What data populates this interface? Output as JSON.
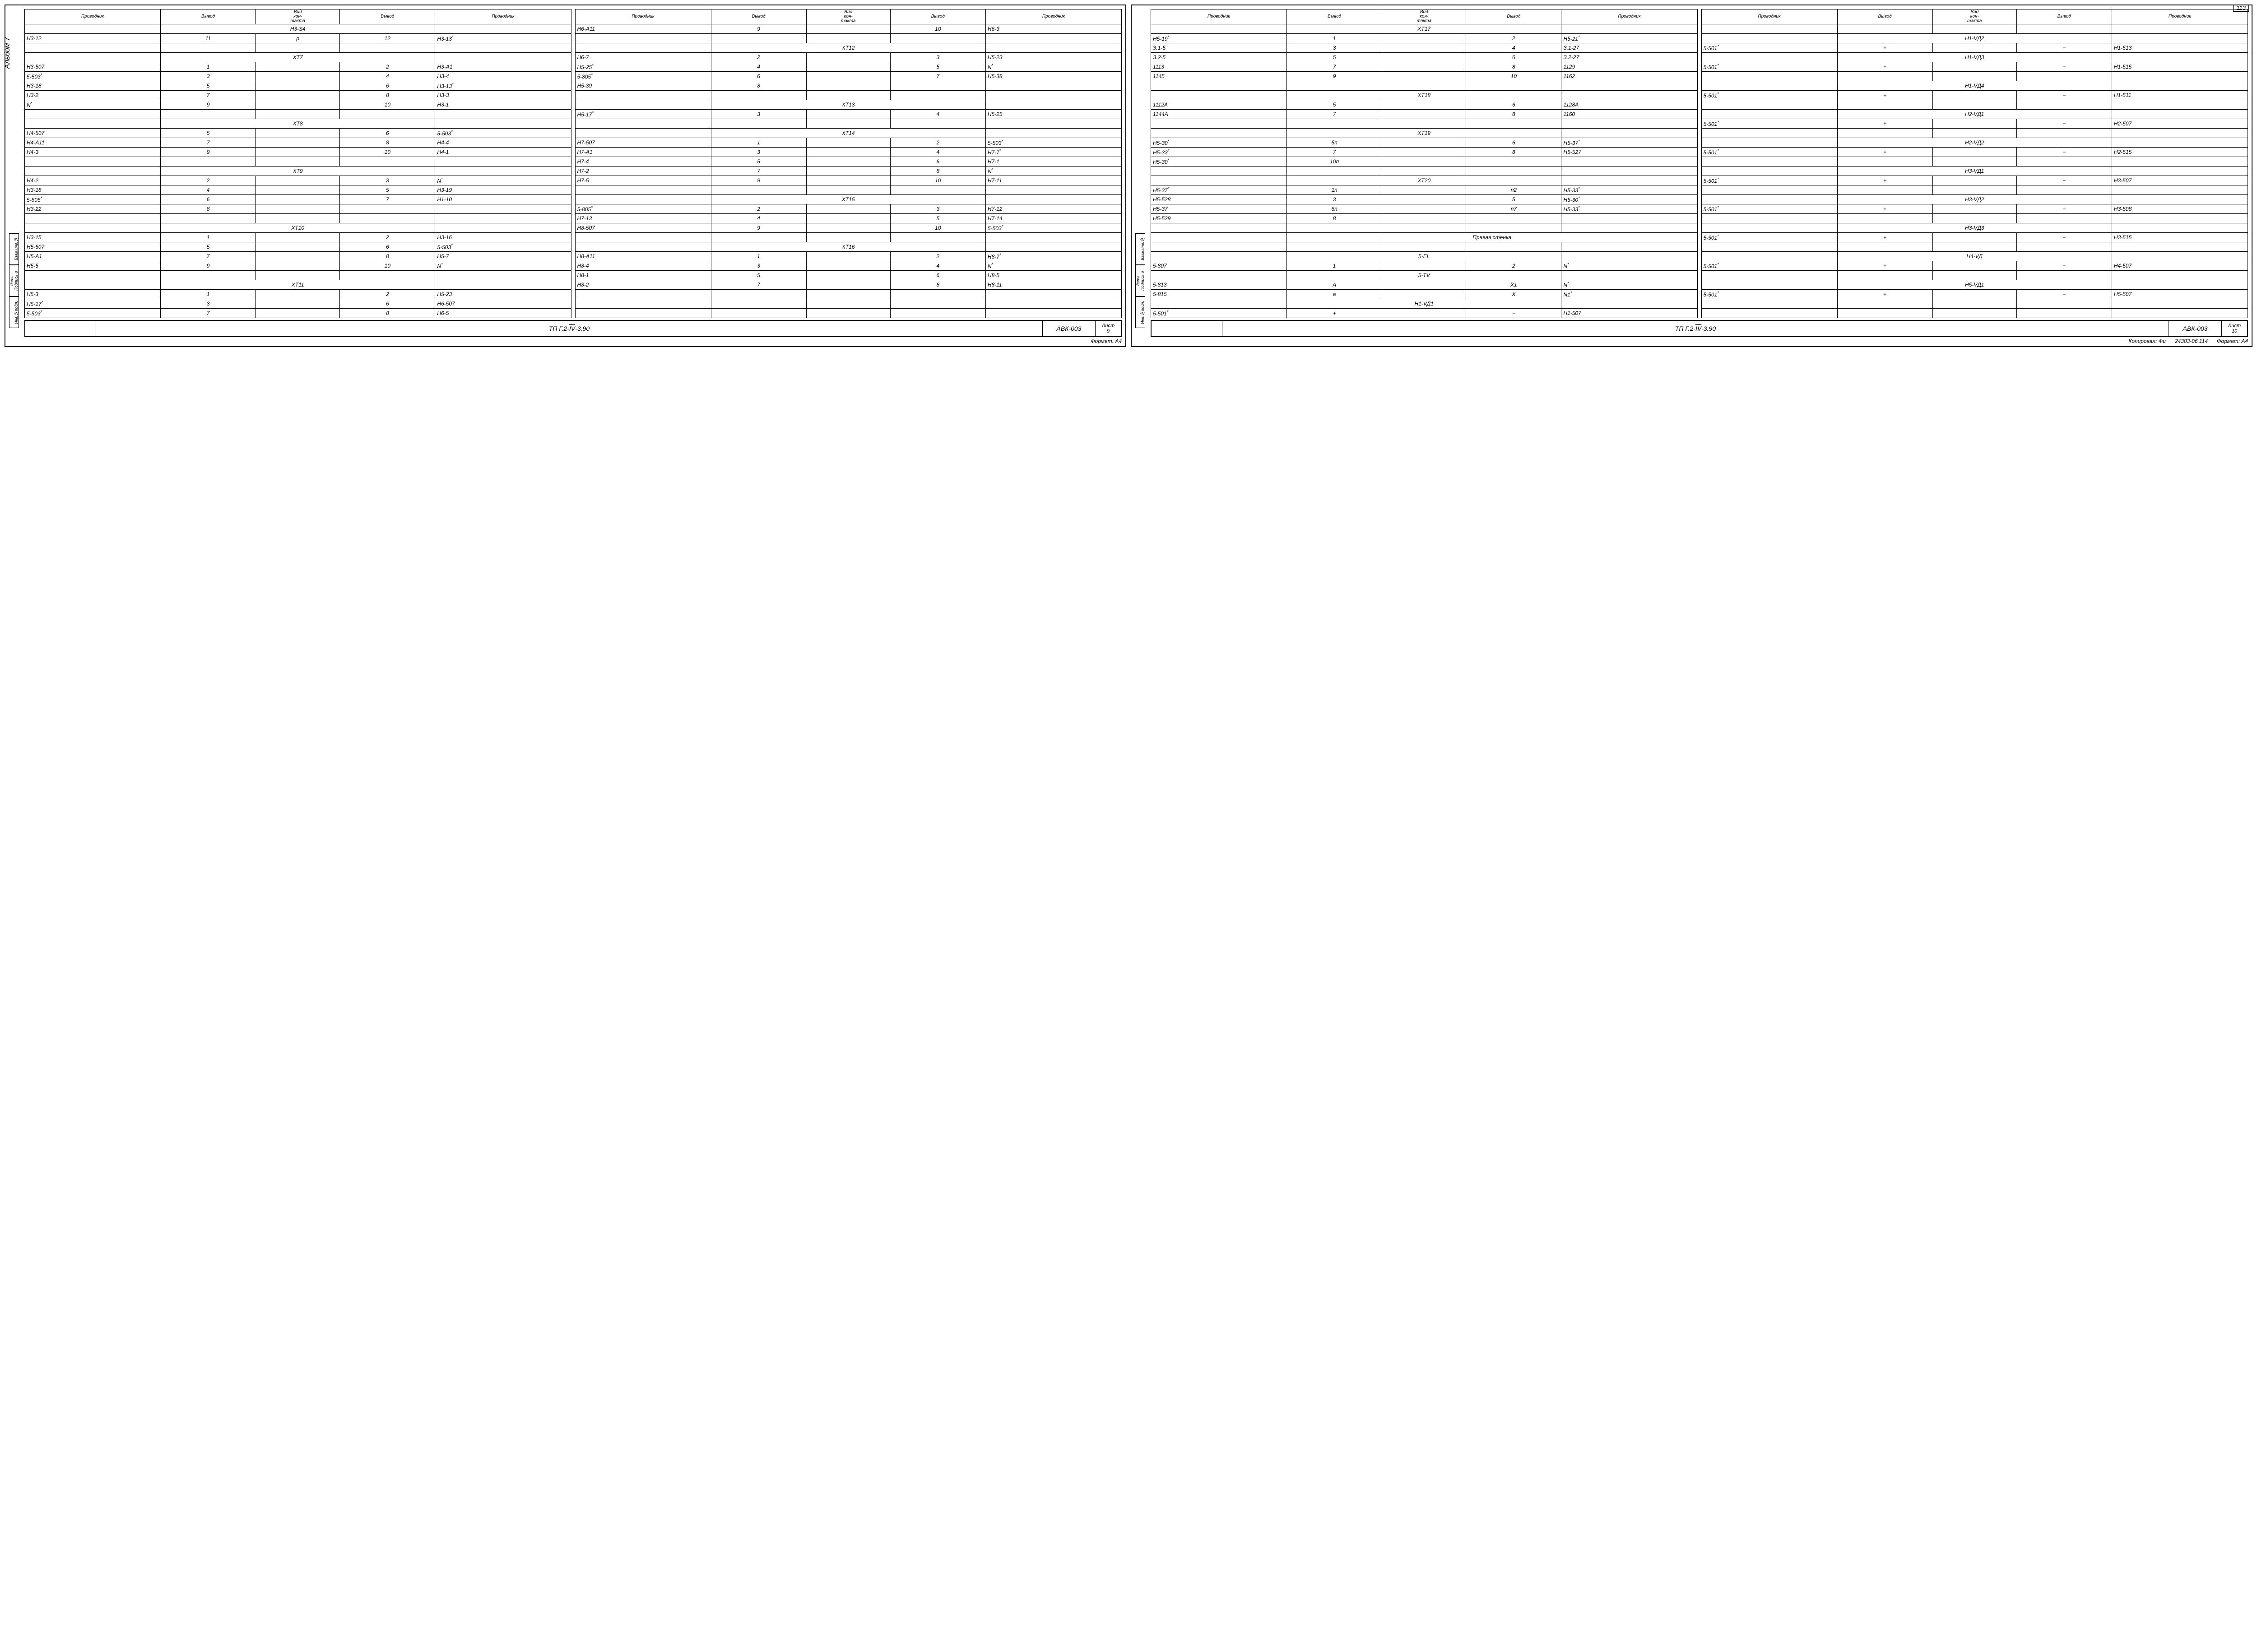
{
  "page_number_top": "113",
  "album_label": "Альбом 7",
  "side_labels": [
    "Взам.инв.№",
    "Подпись и дата",
    "Инв.№подл."
  ],
  "headers": {
    "provodnik": "Проводник",
    "vyvod": "Вывод",
    "vid": "Вид\nкон-\nтакта"
  },
  "titleblock": {
    "code_prefix": "ТП Г.2-",
    "code_roman": "IV",
    "code_suffix": "-3.90",
    "abk": "АВК-003",
    "list_label": "Лист",
    "list9": "9",
    "list10": "10"
  },
  "footer": {
    "format": "Формат: А4",
    "kopiroval": "Копировал: Фи",
    "num": "24383-06 114"
  },
  "tables": {
    "L1": [
      {
        "h": "Н3-S4"
      },
      {
        "r": [
          "Н3-12",
          "11",
          "р",
          "12",
          "Н3-13*"
        ]
      },
      {
        "r": [
          "",
          "",
          "",
          "",
          ""
        ]
      },
      {
        "h": "ХТ7"
      },
      {
        "r": [
          "Н3-507",
          "1",
          "",
          "2",
          "Н3-А1"
        ]
      },
      {
        "r": [
          "5-503*",
          "3",
          "",
          "4",
          "Н3-4"
        ]
      },
      {
        "r": [
          "Н3-18",
          "5",
          "",
          "6",
          "Н3-13*"
        ]
      },
      {
        "r": [
          "Н3-2",
          "7",
          "",
          "8",
          "Н3-3"
        ]
      },
      {
        "r": [
          "N*",
          "9",
          "",
          "10",
          "Н3-1"
        ]
      },
      {
        "r": [
          "",
          "",
          "",
          "",
          ""
        ]
      },
      {
        "h": "ХТ8"
      },
      {
        "r": [
          "Н4-507",
          "5",
          "",
          "6",
          "5-503*"
        ]
      },
      {
        "r": [
          "Н4-А11",
          "7",
          "",
          "8",
          "Н4-4"
        ]
      },
      {
        "r": [
          "Н4-3",
          "9",
          "",
          "10",
          "Н4-1"
        ]
      },
      {
        "r": [
          "",
          "",
          "",
          "",
          ""
        ]
      },
      {
        "h": "ХТ9"
      },
      {
        "r": [
          "Н4-2",
          "2",
          "",
          "3",
          "N*"
        ]
      },
      {
        "r": [
          "Н3-18",
          "4",
          "",
          "5",
          "Н3-19"
        ]
      },
      {
        "r": [
          "5-805*",
          "6",
          "",
          "7",
          "Н1-10"
        ]
      },
      {
        "r": [
          "Н3-22",
          "8",
          "",
          "",
          ""
        ]
      },
      {
        "r": [
          "",
          "",
          "",
          "",
          ""
        ]
      },
      {
        "h": "ХТ10"
      },
      {
        "r": [
          "Н3-15",
          "1",
          "",
          "2",
          "Н3-16"
        ]
      },
      {
        "r": [
          "Н5-507",
          "5",
          "",
          "6",
          "5-503*"
        ]
      },
      {
        "r": [
          "Н5-А1",
          "7",
          "",
          "8",
          "Н5-7"
        ]
      },
      {
        "r": [
          "Н5-5",
          "9",
          "",
          "10",
          "N*"
        ]
      },
      {
        "r": [
          "",
          "",
          "",
          "",
          ""
        ]
      },
      {
        "h": "ХТ11"
      },
      {
        "r": [
          "Н5-3",
          "1",
          "",
          "2",
          "Н5-23"
        ]
      },
      {
        "r": [
          "Н5-17*",
          "3",
          "",
          "6",
          "Н6-507"
        ]
      },
      {
        "r": [
          "5-503*",
          "7",
          "",
          "8",
          "Н6-5"
        ]
      }
    ],
    "L2": [
      {
        "r": [
          "Н6-А11",
          "9",
          "",
          "10",
          "Н6-3"
        ]
      },
      {
        "r": [
          "",
          "",
          "",
          "",
          ""
        ]
      },
      {
        "h": "ХТ12"
      },
      {
        "r": [
          "Н6-7",
          "2",
          "",
          "3",
          "Н5-23"
        ]
      },
      {
        "r": [
          "Н5-25*",
          "4",
          "",
          "5",
          "N*"
        ]
      },
      {
        "r": [
          "5-805*",
          "6",
          "",
          "7",
          "Н5-38"
        ]
      },
      {
        "r": [
          "Н5-39",
          "8",
          "",
          "",
          ""
        ]
      },
      {
        "r": [
          "",
          "",
          "",
          "",
          ""
        ]
      },
      {
        "h": "ХТ13"
      },
      {
        "r": [
          "Н5-17*",
          "3",
          "",
          "4",
          "Н5-25"
        ]
      },
      {
        "r": [
          "",
          "",
          "",
          "",
          ""
        ]
      },
      {
        "h": "ХТ14"
      },
      {
        "r": [
          "Н7-507",
          "1",
          "",
          "2",
          "5-503*"
        ]
      },
      {
        "r": [
          "Н7-А1",
          "3",
          "",
          "4",
          "Н7-7*"
        ]
      },
      {
        "r": [
          "Н7-4",
          "5",
          "",
          "6",
          "Н7-1"
        ]
      },
      {
        "r": [
          "Н7-2",
          "7",
          "",
          "8",
          "N*"
        ]
      },
      {
        "r": [
          "Н7-5",
          "9",
          "",
          "10",
          "Н7-11"
        ]
      },
      {
        "r": [
          "",
          "",
          "",
          "",
          ""
        ]
      },
      {
        "h": "ХТ15"
      },
      {
        "r": [
          "5-805*",
          "2",
          "",
          "3",
          "Н7-12"
        ]
      },
      {
        "r": [
          "Н7-13",
          "4",
          "",
          "5",
          "Н7-14"
        ]
      },
      {
        "r": [
          "Н8-507",
          "9",
          "",
          "10",
          "5-503*"
        ]
      },
      {
        "r": [
          "",
          "",
          "",
          "",
          ""
        ]
      },
      {
        "h": "ХТ16"
      },
      {
        "r": [
          "Н8-А11",
          "1",
          "",
          "2",
          "Н8-7*"
        ]
      },
      {
        "r": [
          "Н8-4",
          "3",
          "",
          "4",
          "N*"
        ]
      },
      {
        "r": [
          "Н8-1",
          "5",
          "",
          "6",
          "Н8-5"
        ]
      },
      {
        "r": [
          "Н8-2",
          "7",
          "",
          "8",
          "Н8-11"
        ]
      },
      {
        "r": [
          "",
          "",
          "",
          "",
          ""
        ]
      },
      {
        "r": [
          "",
          "",
          "",
          "",
          ""
        ]
      },
      {
        "r": [
          "",
          "",
          "",
          "",
          ""
        ]
      }
    ],
    "R1": [
      {
        "h": "ХТ17"
      },
      {
        "r": [
          "Н5-19*",
          "1",
          "",
          "2",
          "Н5-21*"
        ]
      },
      {
        "r": [
          "З.1-5",
          "3",
          "",
          "4",
          "З.1-27"
        ]
      },
      {
        "r": [
          "З.2-5",
          "5",
          "",
          "6",
          "З.2-27"
        ]
      },
      {
        "r": [
          "1113",
          "7",
          "",
          "8",
          "1129"
        ]
      },
      {
        "r": [
          "1145",
          "9",
          "",
          "10",
          "1162"
        ]
      },
      {
        "r": [
          "",
          "",
          "",
          "",
          ""
        ]
      },
      {
        "h": "ХТ18"
      },
      {
        "r": [
          "1112А",
          "5",
          "",
          "6",
          "1128А"
        ]
      },
      {
        "r": [
          "1144А",
          "7",
          "",
          "8",
          "1160"
        ]
      },
      {
        "r": [
          "",
          "",
          "",
          "",
          ""
        ]
      },
      {
        "h": "ХТ19"
      },
      {
        "r": [
          "Н5-30*",
          "5п",
          "",
          "6",
          "Н5-37*"
        ]
      },
      {
        "r": [
          "Н5-33*",
          "7",
          "",
          "8",
          "Н5-527"
        ]
      },
      {
        "r": [
          "Н5-30*",
          "10п",
          "",
          "",
          ""
        ]
      },
      {
        "r": [
          "",
          "",
          "",
          "",
          ""
        ]
      },
      {
        "h": "ХТ20"
      },
      {
        "r": [
          "Н5-37*",
          "1п",
          "",
          "п2",
          "Н5-33*"
        ]
      },
      {
        "r": [
          "Н5-528",
          "3",
          "",
          "5",
          "Н5-30*"
        ]
      },
      {
        "r": [
          "Н5-37",
          "6п",
          "",
          "п7",
          "Н5-33*"
        ]
      },
      {
        "r": [
          "Н5-529",
          "8",
          "",
          "",
          ""
        ]
      },
      {
        "r": [
          "",
          "",
          "",
          "",
          ""
        ]
      },
      {
        "hfull": "Правая   стенка"
      },
      {
        "r": [
          "",
          "",
          "",
          "",
          ""
        ]
      },
      {
        "h": "5-EL"
      },
      {
        "r": [
          "5-807",
          "1",
          "",
          "2",
          "N*"
        ]
      },
      {
        "h": "5-TV"
      },
      {
        "r": [
          "5-813",
          "А",
          "",
          "Х1",
          "N*"
        ]
      },
      {
        "r": [
          "5-815",
          "а",
          "",
          "Х",
          "N1*"
        ]
      },
      {
        "h": "Н1-VД1"
      },
      {
        "r": [
          "5-501*",
          "+",
          "",
          "−",
          "Н1-507"
        ]
      }
    ],
    "R2": [
      {
        "r": [
          "",
          "",
          "",
          "",
          ""
        ]
      },
      {
        "h": "Н1-VД2"
      },
      {
        "r": [
          "5-501*",
          "+",
          "",
          "−",
          "Н1-513"
        ]
      },
      {
        "h": "Н1-VД3"
      },
      {
        "r": [
          "5-501*",
          "+",
          "",
          "−",
          "Н1-515"
        ]
      },
      {
        "r": [
          "",
          "",
          "",
          "",
          ""
        ]
      },
      {
        "h": "Н1-VД4"
      },
      {
        "r": [
          "5-501*",
          "+",
          "",
          "−",
          "Н1-511"
        ]
      },
      {
        "r": [
          "",
          "",
          "",
          "",
          ""
        ]
      },
      {
        "h": "Н2-VД1"
      },
      {
        "r": [
          "5-501*",
          "+",
          "",
          "−",
          "Н2-507"
        ]
      },
      {
        "r": [
          "",
          "",
          "",
          "",
          ""
        ]
      },
      {
        "h": "Н2-VД2"
      },
      {
        "r": [
          "5-501*",
          "+",
          "",
          "−",
          "Н2-515"
        ]
      },
      {
        "r": [
          "",
          "",
          "",
          "",
          ""
        ]
      },
      {
        "h": "Н3-VД1"
      },
      {
        "r": [
          "5-501*",
          "+",
          "",
          "−",
          "Н3-507"
        ]
      },
      {
        "r": [
          "",
          "",
          "",
          "",
          ""
        ]
      },
      {
        "h": "Н3-VД2"
      },
      {
        "r": [
          "5-501*",
          "+",
          "",
          "−",
          "Н3-508"
        ]
      },
      {
        "r": [
          "",
          "",
          "",
          "",
          ""
        ]
      },
      {
        "h": "Н3-VД3"
      },
      {
        "r": [
          "5-501*",
          "+",
          "",
          "−",
          "Н3-515"
        ]
      },
      {
        "r": [
          "",
          "",
          "",
          "",
          ""
        ]
      },
      {
        "h": "Н4-VД"
      },
      {
        "r": [
          "5-501*",
          "+",
          "",
          "−",
          "Н4-507"
        ]
      },
      {
        "r": [
          "",
          "",
          "",
          "",
          ""
        ]
      },
      {
        "h": "Н5-VД1"
      },
      {
        "r": [
          "5-501*",
          "+",
          "",
          "−",
          "Н5-507"
        ]
      },
      {
        "r": [
          "",
          "",
          "",
          "",
          ""
        ]
      },
      {
        "r": [
          "",
          "",
          "",
          "",
          ""
        ]
      }
    ]
  }
}
